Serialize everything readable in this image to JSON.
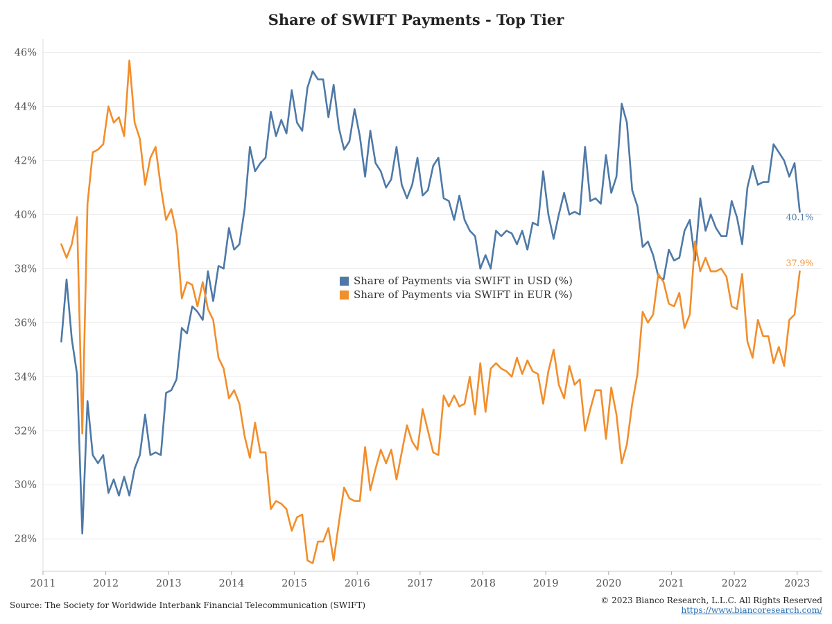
{
  "chart_data": {
    "type": "line",
    "title": "Share of SWIFT Payments - Top Tier",
    "xlabel": "",
    "ylabel": "",
    "ylim": [
      26.8,
      46.5
    ],
    "yticks": [
      28,
      30,
      32,
      34,
      36,
      38,
      40,
      42,
      44,
      46
    ],
    "ytick_labels": [
      "28%",
      "30%",
      "32%",
      "34%",
      "36%",
      "38%",
      "40%",
      "42%",
      "44%",
      "46%"
    ],
    "xlim": [
      2011.0,
      2023.4
    ],
    "xticks": [
      2011,
      2012,
      2013,
      2014,
      2015,
      2016,
      2017,
      2018,
      2019,
      2020,
      2021,
      2022,
      2023
    ],
    "xtick_labels": [
      "2011",
      "2012",
      "2013",
      "2014",
      "2015",
      "2016",
      "2017",
      "2018",
      "2019",
      "2020",
      "2021",
      "2022",
      "2023"
    ],
    "grid": true,
    "legend_position": "center",
    "x_start": "2011-04",
    "x_step": "monthly",
    "series": [
      {
        "name": "Share of Payments via SWIFT in USD (%)",
        "color": "#4e79a7",
        "end_label": "40.1%",
        "values": [
          35.3,
          37.6,
          35.4,
          34.1,
          28.2,
          33.1,
          31.1,
          30.8,
          31.1,
          29.7,
          30.2,
          29.6,
          30.3,
          29.6,
          30.6,
          31.1,
          32.6,
          31.1,
          31.2,
          31.1,
          33.4,
          33.5,
          33.9,
          35.8,
          35.6,
          36.6,
          36.4,
          36.1,
          37.9,
          36.8,
          38.1,
          38.0,
          39.5,
          38.7,
          38.9,
          40.2,
          42.5,
          41.6,
          41.9,
          42.1,
          43.8,
          42.9,
          43.5,
          43.0,
          44.6,
          43.4,
          43.1,
          44.7,
          45.3,
          45.0,
          45.0,
          43.6,
          44.8,
          43.2,
          42.4,
          42.7,
          43.9,
          42.9,
          41.4,
          43.1,
          41.9,
          41.6,
          41.0,
          41.3,
          42.5,
          41.1,
          40.6,
          41.1,
          42.1,
          40.7,
          40.9,
          41.8,
          42.1,
          40.6,
          40.5,
          39.8,
          40.7,
          39.8,
          39.4,
          39.2,
          38.0,
          38.5,
          38.0,
          39.4,
          39.2,
          39.4,
          39.3,
          38.9,
          39.4,
          38.7,
          39.7,
          39.6,
          41.6,
          40.0,
          39.1,
          40.0,
          40.8,
          40.0,
          40.1,
          40.0,
          42.5,
          40.5,
          40.6,
          40.4,
          42.2,
          40.8,
          41.4,
          44.1,
          43.4,
          40.9,
          40.3,
          38.8,
          39.0,
          38.5,
          37.7,
          37.6,
          38.7,
          38.3,
          38.4,
          39.4,
          39.8,
          38.3,
          40.6,
          39.4,
          40.0,
          39.5,
          39.2,
          39.2,
          40.5,
          39.9,
          38.9,
          41.0,
          41.8,
          41.1,
          41.2,
          41.2,
          42.6,
          42.3,
          42.0,
          41.4,
          41.9,
          40.1
        ]
      },
      {
        "name": "Share of Payments via SWIFT in EUR (%)",
        "color": "#f28e2b",
        "end_label": "37.9%",
        "values": [
          38.9,
          38.4,
          38.9,
          39.9,
          31.9,
          40.4,
          42.3,
          42.4,
          42.6,
          44.0,
          43.4,
          43.6,
          42.9,
          45.7,
          43.4,
          42.8,
          41.1,
          42.1,
          42.5,
          41.0,
          39.8,
          40.2,
          39.3,
          36.9,
          37.5,
          37.4,
          36.6,
          37.5,
          36.5,
          36.1,
          34.7,
          34.3,
          33.2,
          33.5,
          33.0,
          31.8,
          31.0,
          32.3,
          31.2,
          31.2,
          29.1,
          29.4,
          29.3,
          29.1,
          28.3,
          28.8,
          28.9,
          27.2,
          27.1,
          27.9,
          27.9,
          28.4,
          27.2,
          28.6,
          29.9,
          29.5,
          29.4,
          29.4,
          31.4,
          29.8,
          30.6,
          31.3,
          30.8,
          31.3,
          30.2,
          31.2,
          32.2,
          31.6,
          31.3,
          32.8,
          32.0,
          31.2,
          31.1,
          33.3,
          32.9,
          33.3,
          32.9,
          33.0,
          34.0,
          32.6,
          34.5,
          32.7,
          34.3,
          34.5,
          34.3,
          34.2,
          34.0,
          34.7,
          34.1,
          34.6,
          34.2,
          34.1,
          33.0,
          34.2,
          35.0,
          33.7,
          33.2,
          34.4,
          33.7,
          33.9,
          32.0,
          32.8,
          33.5,
          33.5,
          31.7,
          33.6,
          32.6,
          30.8,
          31.5,
          33.0,
          34.1,
          36.4,
          36.0,
          36.3,
          37.8,
          37.5,
          36.7,
          36.6,
          37.1,
          35.8,
          36.3,
          39.0,
          37.9,
          38.4,
          37.9,
          37.9,
          38.0,
          37.7,
          36.6,
          36.5,
          37.8,
          35.3,
          34.7,
          36.1,
          35.5,
          35.5,
          34.5,
          35.1,
          34.4,
          36.1,
          36.3,
          37.9
        ]
      }
    ]
  },
  "legend": {
    "usd_label": "Share of Payments via SWIFT in USD (%)",
    "eur_label": "Share of Payments via SWIFT in EUR (%)"
  },
  "footer": {
    "source": "Source: The Society for Worldwide Interbank Financial Telecommunication (SWIFT)",
    "copyright": "© 2023 Bianco Research, L.L.C. All Rights Reserved",
    "website": "https://www.biancoresearch.com/"
  }
}
